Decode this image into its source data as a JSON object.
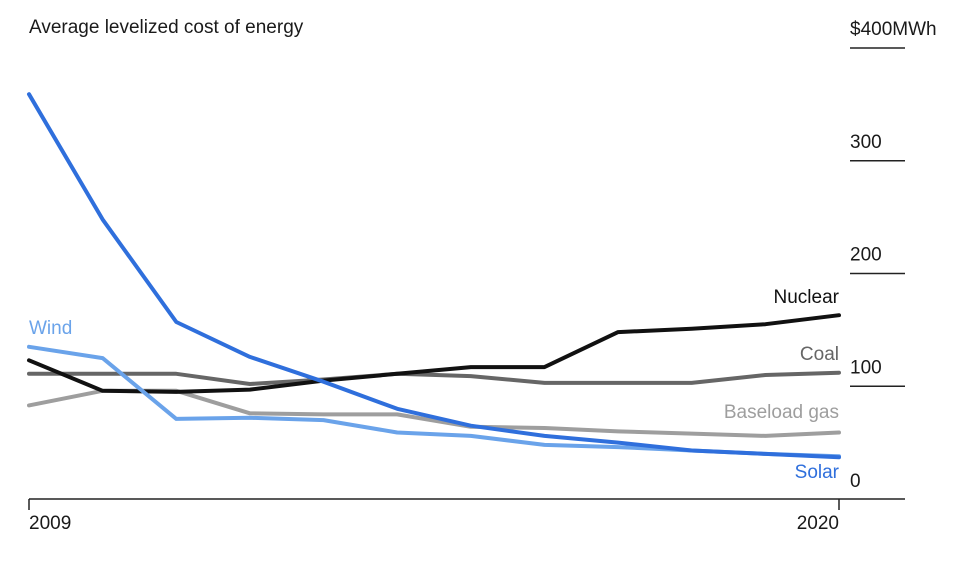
{
  "chart_data": {
    "type": "line",
    "title": "Average levelized cost of energy",
    "x": [
      2009,
      2010,
      2011,
      2012,
      2013,
      2014,
      2015,
      2016,
      2017,
      2018,
      2019,
      2020
    ],
    "x_ticks": [
      "2009",
      "2020"
    ],
    "y_ticks": [
      {
        "value": 400,
        "label": "$400MWh"
      },
      {
        "value": 300,
        "label": "300"
      },
      {
        "value": 200,
        "label": "200"
      },
      {
        "value": 100,
        "label": "100"
      },
      {
        "value": 0,
        "label": "0"
      }
    ],
    "ylim": [
      0,
      400
    ],
    "xlim": [
      2009,
      2020
    ],
    "grid": false,
    "series": [
      {
        "name": "Baseload gas",
        "color": "#9e9e9e",
        "values": [
          83,
          96,
          96,
          76,
          75,
          75,
          64,
          63,
          60,
          58,
          56,
          59
        ]
      },
      {
        "name": "Coal",
        "color": "#666666",
        "values": [
          111,
          111,
          111,
          102,
          106,
          111,
          109,
          103,
          103,
          103,
          110,
          112
        ]
      },
      {
        "name": "Nuclear",
        "color": "#111111",
        "values": [
          123,
          96,
          95,
          97,
          105,
          111,
          117,
          117,
          148,
          151,
          155,
          163
        ]
      },
      {
        "name": "Wind",
        "color": "#6aa3ea",
        "values": [
          135,
          125,
          71,
          72,
          70,
          59,
          56,
          48,
          46,
          43,
          40,
          38
        ]
      },
      {
        "name": "Solar",
        "color": "#2f6fdc",
        "values": [
          359,
          248,
          157,
          126,
          104,
          80,
          65,
          56,
          50,
          43,
          40,
          37
        ]
      }
    ]
  }
}
